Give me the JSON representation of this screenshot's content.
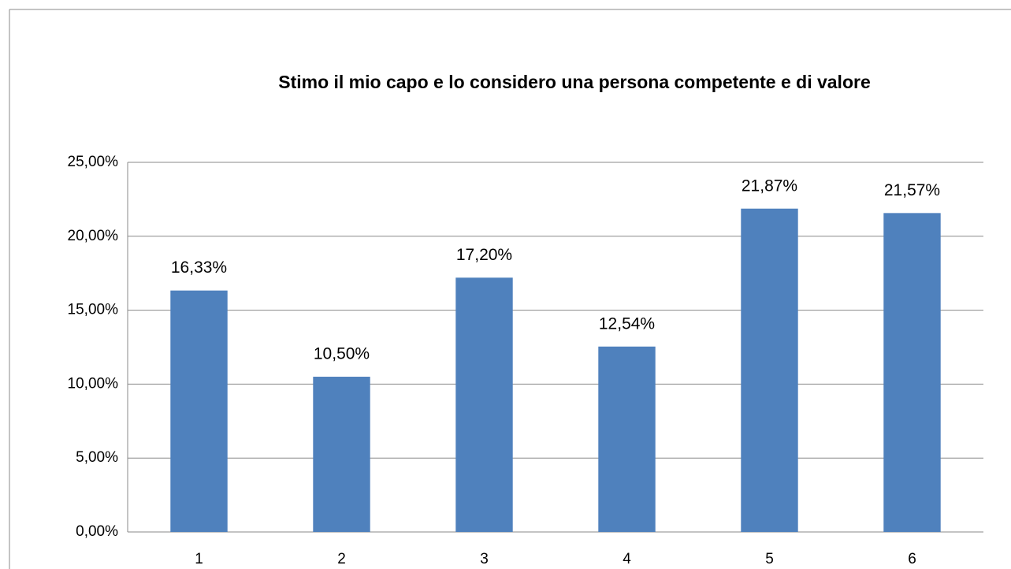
{
  "chart_data": {
    "type": "bar",
    "title": "Stimo il mio capo e lo considero una persona competente e di valore",
    "categories": [
      "1",
      "2",
      "3",
      "4",
      "5",
      "6"
    ],
    "values": [
      16.33,
      10.5,
      17.2,
      12.54,
      21.87,
      21.57
    ],
    "value_labels": [
      "16,33%",
      "10,50%",
      "17,20%",
      "12,54%",
      "21,87%",
      "21,57%"
    ],
    "color": "#4f81bd",
    "ylim": [
      0,
      25
    ],
    "yticks": [
      {
        "value": 0,
        "label": "0,00%"
      },
      {
        "value": 5,
        "label": "5,00%"
      },
      {
        "value": 10,
        "label": "10,00%"
      },
      {
        "value": 15,
        "label": "15,00%"
      },
      {
        "value": 20,
        "label": "20,00%"
      },
      {
        "value": 25,
        "label": "25,00%"
      }
    ],
    "grid": true
  }
}
